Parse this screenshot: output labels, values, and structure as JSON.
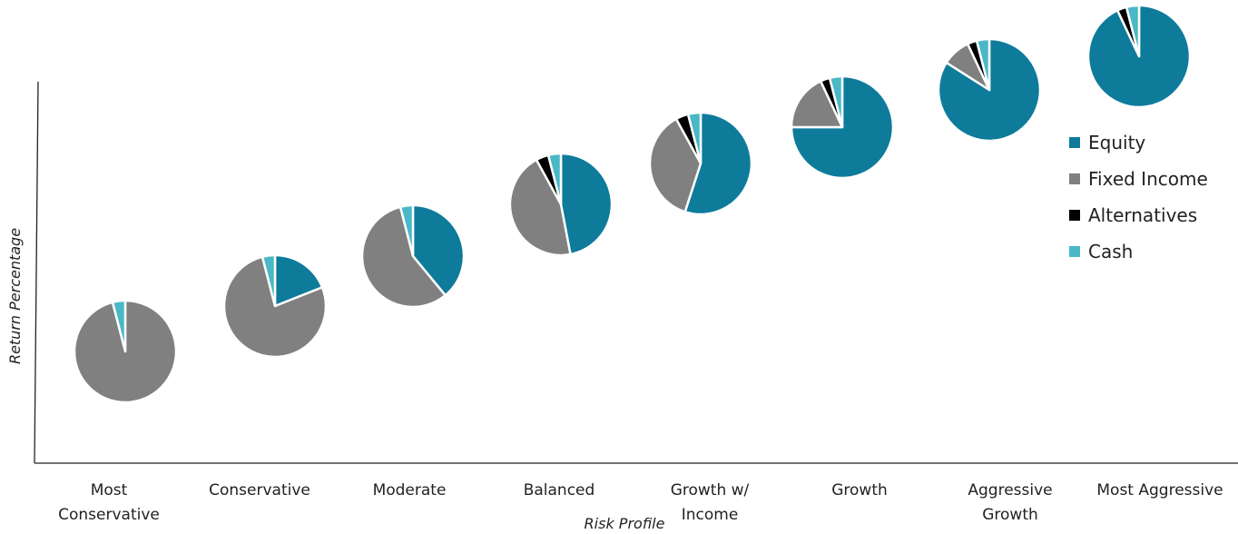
{
  "chart_data": {
    "type": "pie",
    "title": "",
    "xlabel": "Risk Profile",
    "ylabel": "Return Percentage",
    "legend_position": "right",
    "colors": {
      "Equity": "#0e7b9b",
      "Fixed Income": "#808080",
      "Alternatives": "#000000",
      "Cash": "#4ab8c6"
    },
    "legend": [
      "Equity",
      "Fixed Income",
      "Alternatives",
      "Cash"
    ],
    "categories": [
      [
        "Most",
        "Conservative"
      ],
      [
        "Conservative"
      ],
      [
        "Moderate"
      ],
      [
        "Balanced"
      ],
      [
        "Growth w/",
        "Income"
      ],
      [
        "Growth"
      ],
      [
        "Aggressive",
        "Growth"
      ],
      [
        "Most Aggressive"
      ]
    ],
    "portfolios": [
      {
        "Equity": 0,
        "Fixed Income": 96,
        "Alternatives": 0,
        "Cash": 4
      },
      {
        "Equity": 19,
        "Fixed Income": 77,
        "Alternatives": 0,
        "Cash": 4
      },
      {
        "Equity": 39,
        "Fixed Income": 57,
        "Alternatives": 0,
        "Cash": 4
      },
      {
        "Equity": 47,
        "Fixed Income": 45,
        "Alternatives": 4,
        "Cash": 4
      },
      {
        "Equity": 55,
        "Fixed Income": 37,
        "Alternatives": 4,
        "Cash": 4
      },
      {
        "Equity": 75,
        "Fixed Income": 18,
        "Alternatives": 3,
        "Cash": 4
      },
      {
        "Equity": 84,
        "Fixed Income": 9,
        "Alternatives": 3,
        "Cash": 4
      },
      {
        "Equity": 93,
        "Fixed Income": 0,
        "Alternatives": 3,
        "Cash": 4
      }
    ]
  }
}
